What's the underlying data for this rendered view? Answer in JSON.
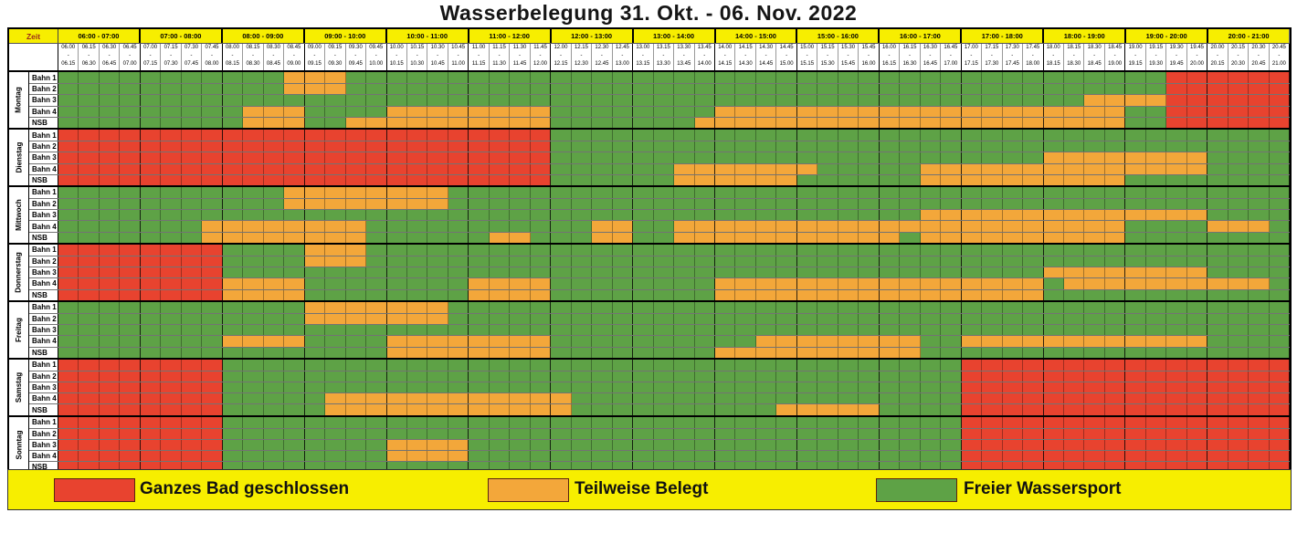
{
  "title": "Wasserbelegung 31. Okt. - 06. Nov. 2022",
  "colors": {
    "closed": "#e8432f",
    "partial": "#f3a73a",
    "free": "#5ea246",
    "header_bg": "#f7ee00",
    "legend_bg": "#f7ee00",
    "zeit_text": "#9c2c1a"
  },
  "header": {
    "zeit_label": "Zeit",
    "hours": [
      "06:00 - 07:00",
      "07:00 - 08:00",
      "08:00 - 09:00",
      "09:00 - 10:00",
      "10:00 - 11:00",
      "11:00 - 12:00",
      "12:00 - 13:00",
      "13:00 - 14:00",
      "14:00 - 15:00",
      "15:00 - 16:00",
      "16:00 - 17:00",
      "17:00 - 18:00",
      "18:00 - 19:00",
      "19:00 - 20:00",
      "20:00 - 21:00"
    ],
    "slots": [
      "06.00",
      "06.15",
      "06.30",
      "06.45",
      "07.00",
      "07.15",
      "07.30",
      "07.45",
      "08.00",
      "08.15",
      "08.30",
      "08.45",
      "09.00",
      "09.15",
      "09.30",
      "09.45",
      "10.00",
      "10.15",
      "10.30",
      "10.45",
      "11.00",
      "11.15",
      "11.30",
      "11.45",
      "12.00",
      "12.15",
      "12.30",
      "12.45",
      "13.00",
      "13.15",
      "13.30",
      "13.45",
      "14.00",
      "14.15",
      "14.30",
      "14.45",
      "15.00",
      "15.15",
      "15.30",
      "15.45",
      "16.00",
      "16.15",
      "16.30",
      "16.45",
      "17.00",
      "17.15",
      "17.30",
      "17.45",
      "18.00",
      "18.15",
      "18.30",
      "18.45",
      "19.00",
      "19.15",
      "19.30",
      "19.45",
      "20.00",
      "20.15",
      "20.30",
      "20.45",
      "21.00"
    ]
  },
  "legend": [
    {
      "label": "Ganzes Bad geschlossen",
      "key": "closed"
    },
    {
      "label": "Teilweise Belegt",
      "key": "partial"
    },
    {
      "label": "Freier Wassersport",
      "key": "free"
    }
  ],
  "chart_data": {
    "type": "heatmap",
    "title": "Wasserbelegung 31. Okt. - 06. Nov. 2022",
    "x_slot_minutes": 15,
    "time_range": [
      "06:00",
      "21:00"
    ],
    "status_codes": {
      "R": "Ganzes Bad geschlossen",
      "O": "Teilweise Belegt",
      "G": "Freier Wassersport"
    },
    "days": [
      {
        "name": "Montag",
        "rows": [
          {
            "label": "Bahn 1",
            "seg": [
              [
                "G",
                11
              ],
              [
                "O",
                3
              ],
              [
                "G",
                40
              ],
              [
                "R",
                6
              ]
            ]
          },
          {
            "label": "Bahn 2",
            "seg": [
              [
                "G",
                11
              ],
              [
                "O",
                3
              ],
              [
                "G",
                40
              ],
              [
                "R",
                6
              ]
            ]
          },
          {
            "label": "Bahn 3",
            "seg": [
              [
                "G",
                50
              ],
              [
                "O",
                4
              ],
              [
                "R",
                6
              ]
            ]
          },
          {
            "label": "Bahn 4",
            "seg": [
              [
                "G",
                9
              ],
              [
                "O",
                3
              ],
              [
                "G",
                4
              ],
              [
                "O",
                8
              ],
              [
                "G",
                8
              ],
              [
                "O",
                20
              ],
              [
                "G",
                2
              ],
              [
                "R",
                6
              ]
            ]
          },
          {
            "label": "NSB",
            "seg": [
              [
                "G",
                9
              ],
              [
                "O",
                3
              ],
              [
                "G",
                2
              ],
              [
                "O",
                10
              ],
              [
                "G",
                7
              ],
              [
                "O",
                21
              ],
              [
                "G",
                2
              ],
              [
                "R",
                6
              ]
            ]
          }
        ]
      },
      {
        "name": "Dienstag",
        "rows": [
          {
            "label": "Bahn 1",
            "seg": [
              [
                "R",
                24
              ],
              [
                "G",
                36
              ]
            ]
          },
          {
            "label": "Bahn 2",
            "seg": [
              [
                "R",
                24
              ],
              [
                "G",
                36
              ]
            ]
          },
          {
            "label": "Bahn 3",
            "seg": [
              [
                "R",
                24
              ],
              [
                "G",
                24
              ],
              [
                "O",
                8
              ],
              [
                "G",
                4
              ]
            ]
          },
          {
            "label": "Bahn 4",
            "seg": [
              [
                "R",
                24
              ],
              [
                "G",
                6
              ],
              [
                "O",
                7
              ],
              [
                "G",
                5
              ],
              [
                "O",
                14
              ],
              [
                "G",
                4
              ]
            ]
          },
          {
            "label": "NSB",
            "seg": [
              [
                "R",
                24
              ],
              [
                "G",
                6
              ],
              [
                "O",
                6
              ],
              [
                "G",
                6
              ],
              [
                "O",
                10
              ],
              [
                "G",
                8
              ]
            ]
          }
        ]
      },
      {
        "name": "Mittwoch",
        "rows": [
          {
            "label": "Bahn 1",
            "seg": [
              [
                "G",
                11
              ],
              [
                "O",
                8
              ],
              [
                "G",
                41
              ]
            ]
          },
          {
            "label": "Bahn 2",
            "seg": [
              [
                "G",
                11
              ],
              [
                "O",
                8
              ],
              [
                "G",
                41
              ]
            ]
          },
          {
            "label": "Bahn 3",
            "seg": [
              [
                "G",
                42
              ],
              [
                "O",
                14
              ],
              [
                "G",
                4
              ]
            ]
          },
          {
            "label": "Bahn 4",
            "seg": [
              [
                "G",
                7
              ],
              [
                "O",
                8
              ],
              [
                "G",
                11
              ],
              [
                "O",
                2
              ],
              [
                "G",
                2
              ],
              [
                "O",
                22
              ],
              [
                "G",
                4
              ],
              [
                "O",
                3
              ],
              [
                "G",
                1
              ]
            ]
          },
          {
            "label": "NSB",
            "seg": [
              [
                "G",
                7
              ],
              [
                "O",
                8
              ],
              [
                "G",
                6
              ],
              [
                "O",
                2
              ],
              [
                "G",
                3
              ],
              [
                "O",
                2
              ],
              [
                "G",
                2
              ],
              [
                "O",
                11
              ],
              [
                "G",
                1
              ],
              [
                "O",
                10
              ],
              [
                "G",
                8
              ]
            ]
          }
        ]
      },
      {
        "name": "Donnerstag",
        "rows": [
          {
            "label": "Bahn 1",
            "seg": [
              [
                "R",
                8
              ],
              [
                "G",
                4
              ],
              [
                "O",
                3
              ],
              [
                "G",
                45
              ]
            ]
          },
          {
            "label": "Bahn 2",
            "seg": [
              [
                "R",
                8
              ],
              [
                "G",
                4
              ],
              [
                "O",
                3
              ],
              [
                "G",
                45
              ]
            ]
          },
          {
            "label": "Bahn 3",
            "seg": [
              [
                "R",
                8
              ],
              [
                "G",
                40
              ],
              [
                "O",
                8
              ],
              [
                "G",
                4
              ]
            ]
          },
          {
            "label": "Bahn 4",
            "seg": [
              [
                "R",
                8
              ],
              [
                "O",
                4
              ],
              [
                "G",
                8
              ],
              [
                "O",
                4
              ],
              [
                "G",
                8
              ],
              [
                "O",
                16
              ],
              [
                "G",
                1
              ],
              [
                "O",
                10
              ],
              [
                "G",
                1
              ]
            ]
          },
          {
            "label": "NSB",
            "seg": [
              [
                "R",
                8
              ],
              [
                "O",
                4
              ],
              [
                "G",
                8
              ],
              [
                "O",
                4
              ],
              [
                "G",
                8
              ],
              [
                "O",
                16
              ],
              [
                "G",
                12
              ]
            ]
          }
        ]
      },
      {
        "name": "Freitag",
        "rows": [
          {
            "label": "Bahn 1",
            "seg": [
              [
                "G",
                12
              ],
              [
                "O",
                7
              ],
              [
                "G",
                41
              ]
            ]
          },
          {
            "label": "Bahn 2",
            "seg": [
              [
                "G",
                12
              ],
              [
                "O",
                7
              ],
              [
                "G",
                41
              ]
            ]
          },
          {
            "label": "Bahn 3",
            "seg": [
              [
                "G",
                60
              ]
            ]
          },
          {
            "label": "Bahn 4",
            "seg": [
              [
                "G",
                8
              ],
              [
                "O",
                4
              ],
              [
                "G",
                4
              ],
              [
                "O",
                8
              ],
              [
                "G",
                10
              ],
              [
                "O",
                8
              ],
              [
                "G",
                2
              ],
              [
                "O",
                12
              ],
              [
                "G",
                4
              ]
            ]
          },
          {
            "label": "NSB",
            "seg": [
              [
                "G",
                16
              ],
              [
                "O",
                8
              ],
              [
                "G",
                8
              ],
              [
                "O",
                10
              ],
              [
                "G",
                18
              ]
            ]
          }
        ]
      },
      {
        "name": "Samstag",
        "rows": [
          {
            "label": "Bahn 1",
            "seg": [
              [
                "R",
                8
              ],
              [
                "G",
                36
              ],
              [
                "R",
                16
              ]
            ]
          },
          {
            "label": "Bahn 2",
            "seg": [
              [
                "R",
                8
              ],
              [
                "G",
                36
              ],
              [
                "R",
                16
              ]
            ]
          },
          {
            "label": "Bahn 3",
            "seg": [
              [
                "R",
                8
              ],
              [
                "G",
                36
              ],
              [
                "R",
                16
              ]
            ]
          },
          {
            "label": "Bahn 4",
            "seg": [
              [
                "R",
                8
              ],
              [
                "G",
                5
              ],
              [
                "O",
                12
              ],
              [
                "G",
                19
              ],
              [
                "R",
                16
              ]
            ]
          },
          {
            "label": "NSB",
            "seg": [
              [
                "R",
                8
              ],
              [
                "G",
                5
              ],
              [
                "O",
                12
              ],
              [
                "G",
                10
              ],
              [
                "O",
                5
              ],
              [
                "G",
                4
              ],
              [
                "R",
                16
              ]
            ]
          }
        ]
      },
      {
        "name": "Sonntag",
        "rows": [
          {
            "label": "Bahn 1",
            "seg": [
              [
                "R",
                8
              ],
              [
                "G",
                36
              ],
              [
                "R",
                16
              ]
            ]
          },
          {
            "label": "Bahn 2",
            "seg": [
              [
                "R",
                8
              ],
              [
                "G",
                36
              ],
              [
                "R",
                16
              ]
            ]
          },
          {
            "label": "Bahn 3",
            "seg": [
              [
                "R",
                8
              ],
              [
                "G",
                8
              ],
              [
                "O",
                4
              ],
              [
                "G",
                24
              ],
              [
                "R",
                16
              ]
            ]
          },
          {
            "label": "Bahn 4",
            "seg": [
              [
                "R",
                8
              ],
              [
                "G",
                8
              ],
              [
                "O",
                4
              ],
              [
                "G",
                24
              ],
              [
                "R",
                16
              ]
            ]
          },
          {
            "label": "NSB",
            "seg": [
              [
                "R",
                8
              ],
              [
                "G",
                36
              ],
              [
                "R",
                16
              ]
            ]
          }
        ]
      }
    ]
  }
}
